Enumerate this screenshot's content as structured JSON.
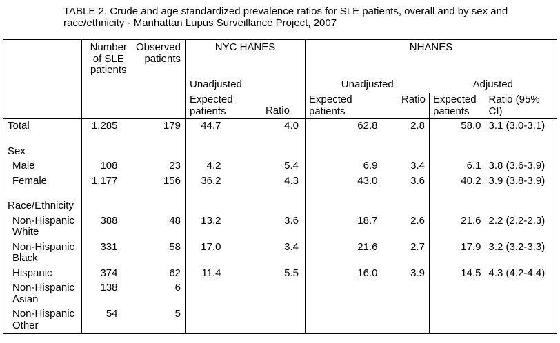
{
  "title": "TABLE 2. Crude and age standardized prevalence ratios for SLE patients, overall and by sex and race/ethnicity - Manhattan Lupus Surveillance Project, 2007",
  "table": {
    "headers": {
      "number_sle": "Number of SLE patients",
      "observed": "Observed patients",
      "nyc_hanes": "NYC HANES",
      "nhanes": "NHANES",
      "unadjusted": "Unadjusted",
      "adjusted": "Adjusted",
      "expected": "Expected patients",
      "ratio": "Ratio",
      "ratio_ci": "Ratio (95% CI)"
    },
    "rows": [
      {
        "type": "data",
        "indent": false,
        "label": "Total",
        "values": [
          "1,285",
          "179",
          "44.7",
          "4.0",
          "62.8",
          "2.8",
          "58.0",
          "3.1 (3.0-3.1)"
        ]
      },
      {
        "type": "spacer"
      },
      {
        "type": "section",
        "label": "Sex"
      },
      {
        "type": "data",
        "indent": true,
        "label": "Male",
        "values": [
          "108",
          "23",
          "4.2",
          "5.4",
          "6.9",
          "3.4",
          "6.1",
          "3.8 (3.6-3.9)"
        ]
      },
      {
        "type": "data",
        "indent": true,
        "label": "Female",
        "values": [
          "1,177",
          "156",
          "36.2",
          "4.3",
          "43.0",
          "3.6",
          "40.2",
          "3.9 (3.8-3.9)"
        ]
      },
      {
        "type": "spacer"
      },
      {
        "type": "section",
        "label": "Race/Ethnicity"
      },
      {
        "type": "data",
        "indent": true,
        "label": "Non-Hispanic White",
        "values": [
          "388",
          "48",
          "13.2",
          "3.6",
          "18.7",
          "2.6",
          "21.6",
          "2.2 (2.2-2.3)"
        ]
      },
      {
        "type": "data",
        "indent": true,
        "label": "Non-Hispanic Black",
        "values": [
          "331",
          "58",
          "17.0",
          "3.4",
          "21.6",
          "2.7",
          "17.9",
          "3.2 (3.2-3.3)"
        ]
      },
      {
        "type": "data",
        "indent": true,
        "label": "Hispanic",
        "values": [
          "374",
          "62",
          "11.4",
          "5.5",
          "16.0",
          "3.9",
          "14.5",
          "4.3 (4.2-4.4)"
        ]
      },
      {
        "type": "data",
        "indent": true,
        "label": "Non-Hispanic Asian",
        "values": [
          "138",
          "6",
          "",
          "",
          "",
          "",
          "",
          ""
        ]
      },
      {
        "type": "data",
        "indent": true,
        "label": "Non-Hispanic Other",
        "values": [
          "54",
          "5",
          "",
          "",
          "",
          "",
          "",
          ""
        ]
      }
    ]
  }
}
